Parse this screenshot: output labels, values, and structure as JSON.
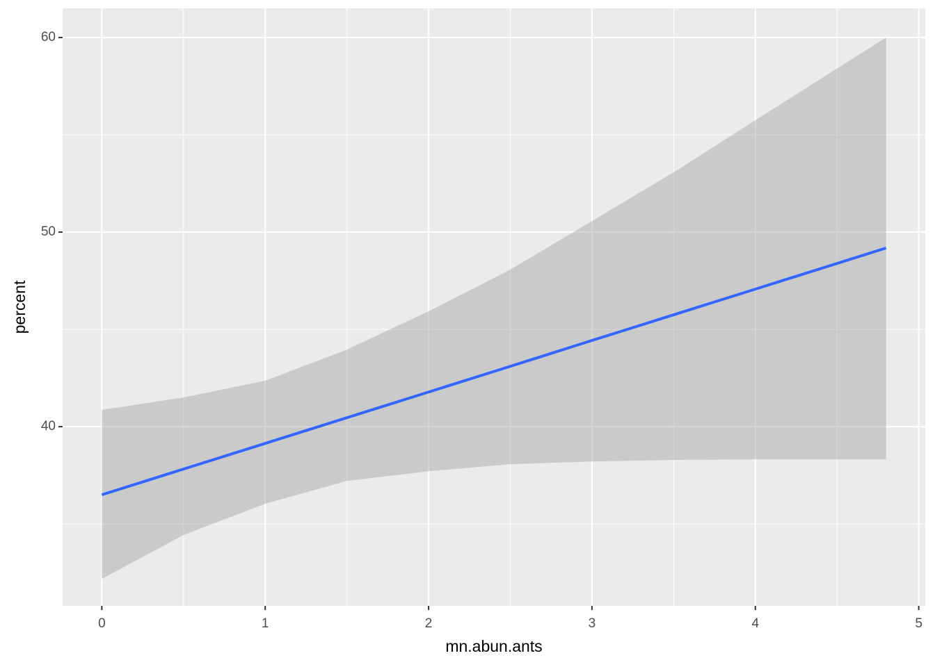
{
  "chart_data": {
    "type": "line",
    "x_label": "mn.abun.ants",
    "y_label": "percent",
    "x": [
      0,
      0.5,
      1,
      1.5,
      2,
      2.5,
      3,
      3.5,
      4,
      4.8
    ],
    "values": [
      36.5,
      37.82,
      39.14,
      40.46,
      41.78,
      43.1,
      44.43,
      45.75,
      47.07,
      49.18
    ],
    "lower": [
      32.18,
      34.43,
      36.04,
      37.21,
      37.71,
      38.07,
      38.21,
      38.29,
      38.32,
      38.32
    ],
    "upper": [
      40.86,
      41.5,
      42.36,
      43.96,
      45.93,
      48.07,
      50.57,
      53.07,
      55.75,
      60
    ],
    "color": "#3366ff",
    "ribbon_color": "#999999",
    "xlim": [
      -0.24,
      5.04
    ],
    "ylim": [
      30.79,
      61.5
    ],
    "xticks": [
      0,
      1,
      2,
      3,
      4,
      5
    ],
    "yticks": [
      40,
      50,
      60
    ],
    "grid": true
  }
}
